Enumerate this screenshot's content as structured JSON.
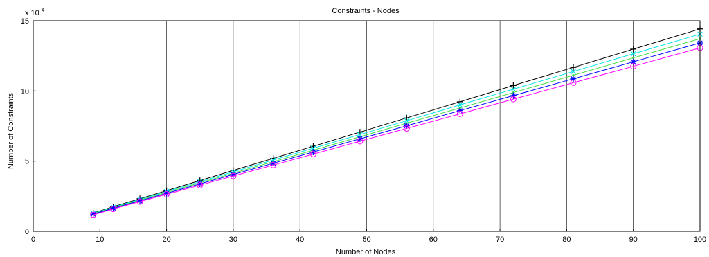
{
  "chart_data": {
    "type": "line",
    "title": "Constraints - Nodes",
    "xlabel": "Number of Nodes",
    "ylabel": "Number of Constraints",
    "y_exponent_label": "x 10",
    "y_exponent_power": "4",
    "xlim": [
      0,
      100
    ],
    "ylim": [
      0,
      150000
    ],
    "xticks": [
      0,
      10,
      20,
      30,
      40,
      50,
      60,
      70,
      80,
      90,
      100
    ],
    "yticks": [
      0,
      50000,
      100000,
      150000
    ],
    "ytick_labels": [
      "0",
      "5",
      "10",
      "15"
    ],
    "grid": true,
    "x": [
      9,
      12,
      16,
      20,
      25,
      30,
      36,
      42,
      49,
      56,
      64,
      72,
      81,
      90,
      100
    ],
    "series": [
      {
        "color": "#000000",
        "marker": "plus",
        "values": [
          13100,
          17600,
          23300,
          29000,
          36200,
          43400,
          52000,
          60600,
          70700,
          80800,
          92300,
          103900,
          116800,
          129800,
          144200
        ]
      },
      {
        "color": "#00e5e5",
        "marker": "x",
        "values": [
          12900,
          17200,
          22800,
          28400,
          35400,
          42400,
          50800,
          59200,
          69000,
          78800,
          90100,
          101300,
          113900,
          126500,
          140500
        ]
      },
      {
        "color": "#44dd44",
        "marker": "dot",
        "values": [
          12600,
          16800,
          22300,
          27800,
          34600,
          41400,
          49600,
          57800,
          67400,
          77000,
          87900,
          98900,
          111200,
          123600,
          137200
        ]
      },
      {
        "color": "#0000ff",
        "marker": "star",
        "values": [
          12300,
          16500,
          21800,
          27100,
          33800,
          40500,
          48500,
          56500,
          65900,
          75200,
          86000,
          96700,
          108700,
          120800,
          134200
        ]
      },
      {
        "color": "#ff00ff",
        "marker": "circle",
        "values": [
          11800,
          16000,
          21200,
          26400,
          32900,
          39400,
          47200,
          55000,
          64200,
          73300,
          83700,
          94200,
          105900,
          117600,
          130700
        ]
      }
    ]
  }
}
